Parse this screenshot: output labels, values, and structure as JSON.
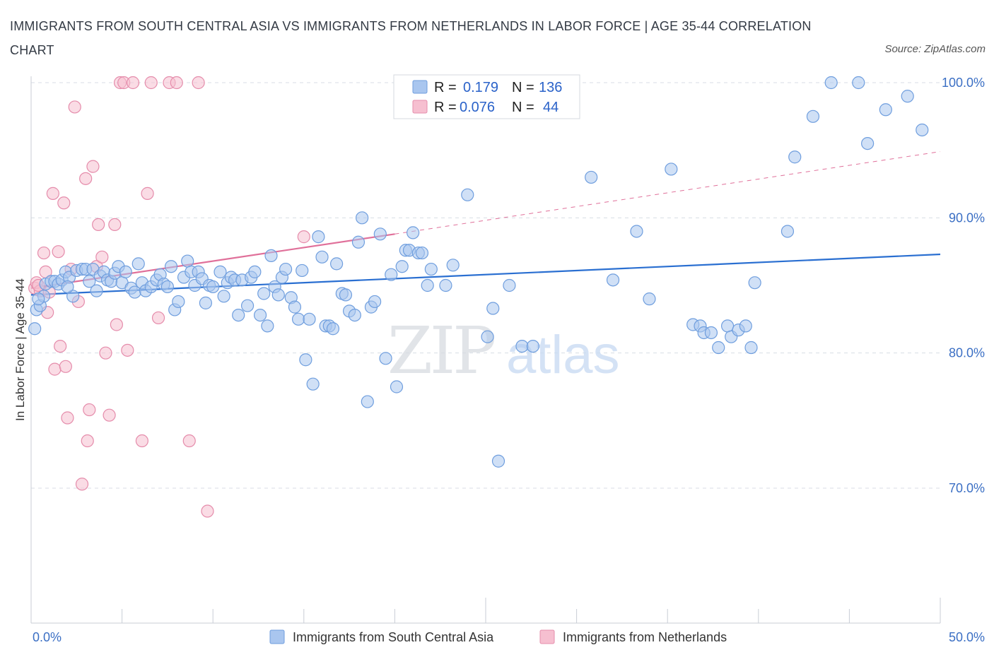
{
  "title": "IMMIGRANTS FROM SOUTH CENTRAL ASIA VS IMMIGRANTS FROM NETHERLANDS IN LABOR FORCE | AGE 35-44 CORRELATION CHART",
  "source": "Source: ZipAtlas.com",
  "watermark": {
    "zip": "ZIP",
    "atlas": "atlas"
  },
  "colors": {
    "blue_fill": "#a9c6ef",
    "blue_stroke": "#6f9ede",
    "blue_line": "#2a6fd1",
    "pink_fill": "#f6bfd0",
    "pink_stroke": "#e58cab",
    "pink_line": "#e0709a",
    "axis_label": "#3b6fc4",
    "grid": "#d8dde4"
  },
  "legend": {
    "rows": [
      {
        "r_label": "R =",
        "r_value": "0.179",
        "n_label": "N =",
        "n_value": "136",
        "series": "blue"
      },
      {
        "r_label": "R =",
        "r_value": "0.076",
        "n_label": "N =",
        "n_value": "44",
        "series": "pink"
      }
    ]
  },
  "chart_data": {
    "type": "scatter",
    "title": "IMMIGRANTS FROM SOUTH CENTRAL ASIA VS IMMIGRANTS FROM NETHERLANDS IN LABOR FORCE | AGE 35-44 CORRELATION CHART",
    "xlabel": "",
    "ylabel": "In Labor Force | Age 35-44",
    "xlim": [
      0,
      50
    ],
    "ylim": [
      60,
      101
    ],
    "x_tick_labels": [
      {
        "value": 0,
        "label": "0.0%"
      },
      {
        "value": 50,
        "label": "50.0%"
      }
    ],
    "y_tick_labels": [
      {
        "value": 70,
        "label": "70.0%"
      },
      {
        "value": 80,
        "label": "80.0%"
      },
      {
        "value": 90,
        "label": "90.0%"
      },
      {
        "value": 100,
        "label": "100.0%"
      }
    ],
    "grid": true,
    "legend_position": "top-center",
    "series": [
      {
        "name": "Immigrants from South Central Asia",
        "color": "#6f9ede",
        "r": 0.179,
        "n": 136,
        "trend": {
          "x0": 0,
          "y0": 84.3,
          "x1": 50,
          "y1": 87.3
        },
        "points": [
          [
            0.2,
            81.8
          ],
          [
            0.3,
            83.2
          ],
          [
            0.5,
            83.5
          ],
          [
            0.7,
            84.2
          ],
          [
            0.8,
            85.1
          ],
          [
            1.1,
            85.3
          ],
          [
            1.3,
            85.3
          ],
          [
            1.5,
            85.1
          ],
          [
            1.7,
            85.4
          ],
          [
            1.9,
            86.0
          ],
          [
            2.1,
            85.6
          ],
          [
            2.3,
            84.2
          ],
          [
            2.5,
            86.1
          ],
          [
            2.8,
            86.2
          ],
          [
            3.0,
            86.2
          ],
          [
            3.2,
            85.3
          ],
          [
            3.4,
            86.2
          ],
          [
            3.6,
            84.6
          ],
          [
            3.8,
            85.7
          ],
          [
            4.0,
            86.0
          ],
          [
            4.2,
            85.4
          ],
          [
            4.4,
            85.3
          ],
          [
            4.6,
            85.9
          ],
          [
            4.8,
            86.4
          ],
          [
            5.0,
            85.2
          ],
          [
            5.2,
            86.0
          ],
          [
            5.5,
            84.8
          ],
          [
            5.7,
            84.5
          ],
          [
            5.9,
            86.6
          ],
          [
            6.1,
            85.2
          ],
          [
            6.3,
            84.6
          ],
          [
            6.6,
            84.9
          ],
          [
            6.9,
            85.4
          ],
          [
            7.1,
            85.8
          ],
          [
            7.3,
            85.1
          ],
          [
            7.5,
            84.9
          ],
          [
            7.7,
            86.4
          ],
          [
            7.9,
            83.2
          ],
          [
            8.1,
            83.8
          ],
          [
            8.4,
            85.6
          ],
          [
            8.6,
            86.8
          ],
          [
            8.8,
            86.0
          ],
          [
            9.0,
            85.0
          ],
          [
            9.2,
            86.0
          ],
          [
            9.4,
            85.5
          ],
          [
            9.6,
            83.7
          ],
          [
            9.8,
            85.0
          ],
          [
            10.0,
            84.9
          ],
          [
            10.4,
            86.0
          ],
          [
            10.6,
            84.2
          ],
          [
            10.8,
            85.2
          ],
          [
            11.0,
            85.6
          ],
          [
            11.2,
            85.4
          ],
          [
            11.4,
            82.8
          ],
          [
            11.6,
            85.4
          ],
          [
            11.9,
            83.5
          ],
          [
            12.1,
            85.6
          ],
          [
            12.3,
            86.0
          ],
          [
            12.6,
            82.8
          ],
          [
            12.8,
            84.4
          ],
          [
            13.0,
            82.0
          ],
          [
            13.2,
            87.2
          ],
          [
            13.4,
            84.9
          ],
          [
            13.6,
            84.3
          ],
          [
            13.8,
            85.6
          ],
          [
            14.0,
            86.2
          ],
          [
            14.3,
            84.1
          ],
          [
            14.5,
            83.4
          ],
          [
            14.7,
            82.5
          ],
          [
            14.9,
            86.1
          ],
          [
            15.1,
            79.5
          ],
          [
            15.3,
            82.5
          ],
          [
            15.5,
            77.7
          ],
          [
            15.8,
            88.6
          ],
          [
            16.0,
            87.1
          ],
          [
            16.2,
            82.0
          ],
          [
            16.4,
            82.0
          ],
          [
            16.6,
            81.8
          ],
          [
            16.8,
            86.6
          ],
          [
            17.1,
            84.4
          ],
          [
            17.3,
            84.3
          ],
          [
            17.5,
            83.1
          ],
          [
            17.8,
            82.8
          ],
          [
            18.0,
            88.2
          ],
          [
            18.2,
            90.0
          ],
          [
            18.5,
            76.4
          ],
          [
            18.7,
            83.4
          ],
          [
            18.9,
            83.8
          ],
          [
            19.2,
            88.8
          ],
          [
            19.5,
            79.6
          ],
          [
            19.8,
            85.8
          ],
          [
            20.1,
            77.5
          ],
          [
            20.4,
            86.4
          ],
          [
            20.6,
            87.6
          ],
          [
            20.8,
            87.6
          ],
          [
            21.0,
            88.9
          ],
          [
            21.3,
            87.4
          ],
          [
            21.5,
            87.4
          ],
          [
            21.8,
            85.0
          ],
          [
            22.0,
            86.2
          ],
          [
            22.8,
            85.0
          ],
          [
            23.2,
            86.5
          ],
          [
            24.0,
            91.7
          ],
          [
            25.1,
            81.2
          ],
          [
            25.4,
            83.3
          ],
          [
            25.7,
            72.0
          ],
          [
            26.3,
            85.0
          ],
          [
            27.0,
            80.5
          ],
          [
            27.6,
            80.5
          ],
          [
            30.8,
            93.0
          ],
          [
            32.0,
            85.4
          ],
          [
            33.3,
            89.0
          ],
          [
            34.0,
            84.0
          ],
          [
            35.2,
            93.6
          ],
          [
            36.4,
            82.1
          ],
          [
            36.8,
            82.0
          ],
          [
            37.0,
            81.5
          ],
          [
            37.4,
            81.5
          ],
          [
            37.8,
            80.4
          ],
          [
            38.3,
            82.0
          ],
          [
            38.5,
            81.2
          ],
          [
            38.9,
            81.7
          ],
          [
            39.3,
            82.0
          ],
          [
            39.6,
            80.4
          ],
          [
            39.8,
            85.2
          ],
          [
            41.6,
            89.0
          ],
          [
            42.0,
            94.5
          ],
          [
            43.0,
            97.5
          ],
          [
            44.0,
            100.0
          ],
          [
            45.5,
            100.0
          ],
          [
            46.0,
            95.5
          ],
          [
            47.0,
            98.0
          ],
          [
            48.2,
            99.0
          ],
          [
            49.0,
            96.5
          ],
          [
            0.4,
            84.0
          ],
          [
            2.0,
            84.9
          ]
        ]
      },
      {
        "name": "Immigrants from Netherlands",
        "color": "#e58cab",
        "r": 0.076,
        "n": 44,
        "trend": {
          "x0": 0,
          "y0": 84.8,
          "x1": 20,
          "y1": 88.8
        },
        "trend_dashed": {
          "x0": 20,
          "y0": 88.8,
          "x1": 50,
          "y1": 94.9
        },
        "points": [
          [
            0.2,
            84.8
          ],
          [
            0.3,
            85.2
          ],
          [
            0.5,
            84.6
          ],
          [
            0.7,
            87.4
          ],
          [
            0.8,
            86.0
          ],
          [
            0.9,
            83.0
          ],
          [
            1.2,
            91.8
          ],
          [
            1.3,
            78.8
          ],
          [
            1.5,
            87.5
          ],
          [
            1.6,
            80.5
          ],
          [
            1.8,
            91.1
          ],
          [
            1.9,
            79.0
          ],
          [
            2.0,
            75.2
          ],
          [
            2.2,
            86.2
          ],
          [
            2.4,
            98.2
          ],
          [
            2.6,
            83.8
          ],
          [
            2.8,
            70.3
          ],
          [
            3.0,
            92.9
          ],
          [
            3.1,
            73.5
          ],
          [
            3.2,
            75.8
          ],
          [
            3.4,
            93.8
          ],
          [
            3.6,
            86.4
          ],
          [
            3.7,
            89.5
          ],
          [
            3.9,
            87.1
          ],
          [
            4.1,
            80.0
          ],
          [
            4.3,
            75.4
          ],
          [
            4.6,
            89.5
          ],
          [
            4.7,
            82.1
          ],
          [
            4.9,
            100.0
          ],
          [
            5.1,
            100.0
          ],
          [
            5.3,
            80.2
          ],
          [
            5.6,
            100.0
          ],
          [
            6.1,
            73.5
          ],
          [
            6.4,
            91.8
          ],
          [
            6.6,
            100.0
          ],
          [
            7.0,
            82.6
          ],
          [
            7.6,
            100.0
          ],
          [
            8.0,
            100.0
          ],
          [
            8.7,
            73.5
          ],
          [
            9.2,
            100.0
          ],
          [
            9.7,
            68.3
          ],
          [
            15.0,
            88.6
          ],
          [
            0.4,
            85.0
          ],
          [
            1.0,
            84.5
          ]
        ]
      }
    ]
  },
  "bottom_legend": [
    {
      "label": "Immigrants from South Central Asia",
      "series": "blue"
    },
    {
      "label": "Immigrants from Netherlands",
      "series": "pink"
    }
  ]
}
